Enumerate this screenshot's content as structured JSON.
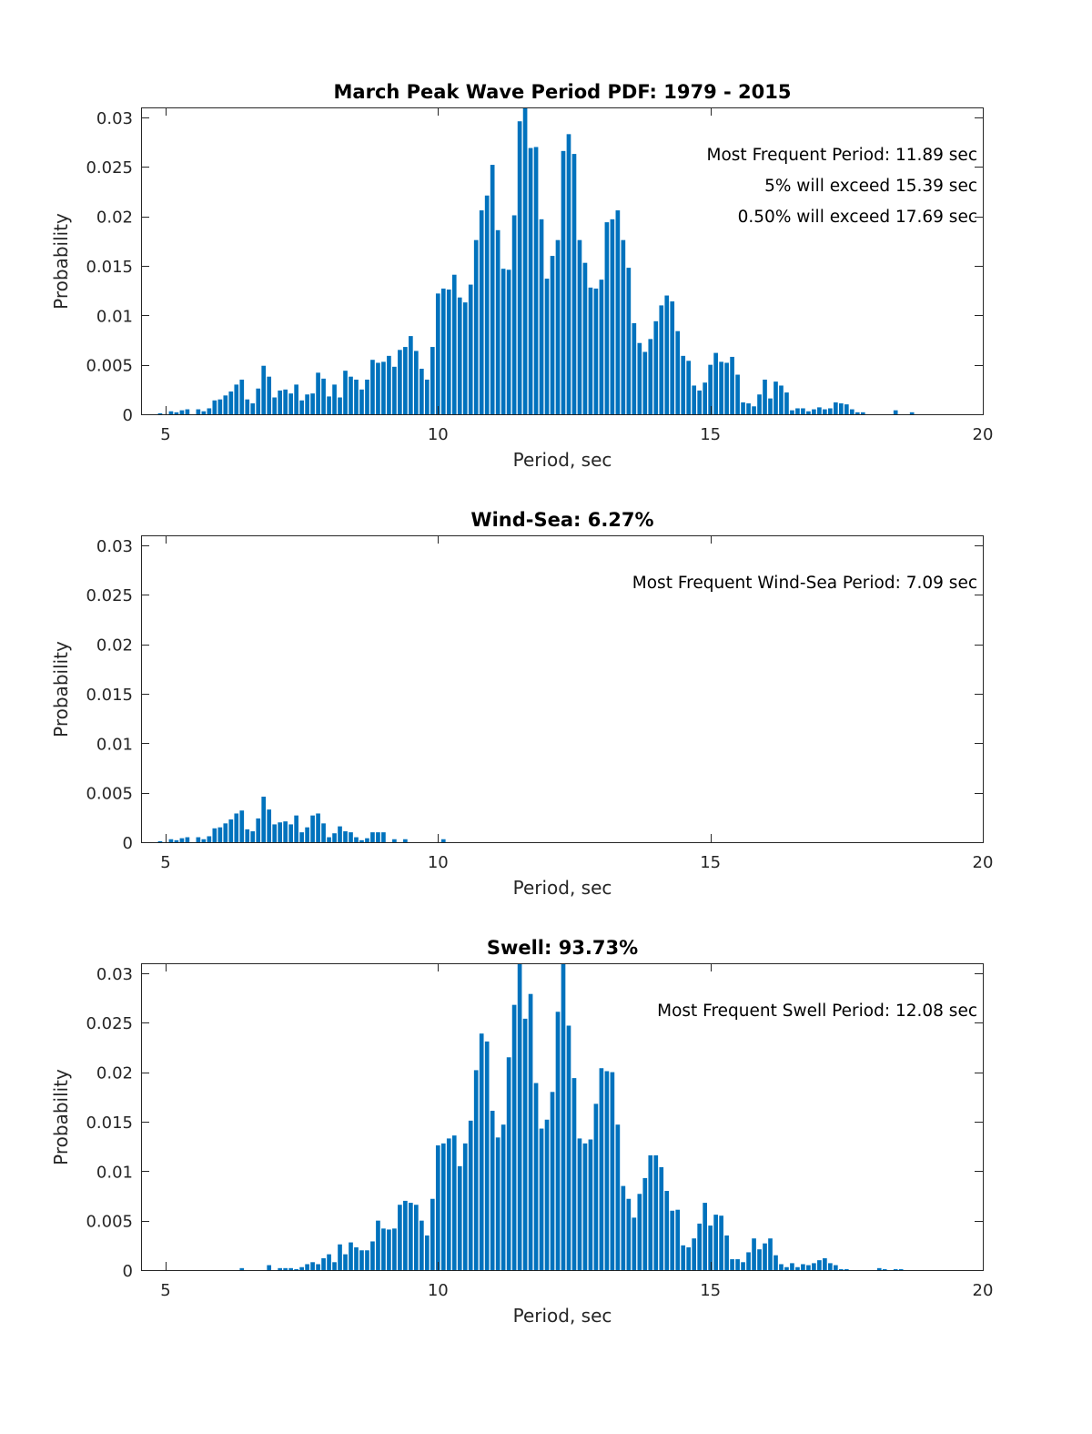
{
  "colors": {
    "bar": "#0072BD",
    "axis": "#262626",
    "background": "#ffffff"
  },
  "chart_data": [
    {
      "type": "bar",
      "title": "March Peak Wave Period PDF: 1979 - 2015",
      "xlabel": "Period, sec",
      "ylabel": "Probability",
      "xlim": [
        4.55,
        20
      ],
      "ylim": [
        0,
        0.031
      ],
      "xticks": [
        5,
        10,
        15,
        20
      ],
      "yticks": [
        0,
        0.005,
        0.01,
        0.015,
        0.02,
        0.025,
        0.03
      ],
      "annotations": [
        "Most Frequent Period: 11.89 sec",
        "5% will exceed 15.39 sec",
        "0.50% will exceed 17.69 sec"
      ],
      "bin_start": 4.9,
      "bin_width": 0.1,
      "values": [
        0.0001,
        0,
        0.0003,
        0.0002,
        0.0004,
        0.0005,
        0,
        0.0005,
        0.0003,
        0.0006,
        0.0014,
        0.0015,
        0.0019,
        0.0023,
        0.003,
        0.0035,
        0.0015,
        0.0011,
        0.0026,
        0.0049,
        0.0038,
        0.0017,
        0.0024,
        0.0025,
        0.0021,
        0.003,
        0.0014,
        0.002,
        0.0021,
        0.0042,
        0.0036,
        0.0018,
        0.003,
        0.0017,
        0.0044,
        0.0038,
        0.0035,
        0.0025,
        0.0035,
        0.0055,
        0.0052,
        0.0053,
        0.0059,
        0.0048,
        0.0065,
        0.0068,
        0.0079,
        0.0064,
        0.0046,
        0.0035,
        0.0068,
        0.0122,
        0.0127,
        0.0126,
        0.0141,
        0.0118,
        0.0113,
        0.0131,
        0.0176,
        0.0206,
        0.0221,
        0.0252,
        0.0186,
        0.0147,
        0.0146,
        0.0201,
        0.0296,
        0.0318,
        0.0269,
        0.027,
        0.0197,
        0.0137,
        0.016,
        0.0176,
        0.0266,
        0.0283,
        0.0263,
        0.0176,
        0.0153,
        0.0128,
        0.0127,
        0.0136,
        0.0194,
        0.0197,
        0.0206,
        0.0176,
        0.0148,
        0.0092,
        0.0072,
        0.0063,
        0.0076,
        0.0094,
        0.011,
        0.012,
        0.0114,
        0.0084,
        0.0059,
        0.0054,
        0.0029,
        0.0024,
        0.0032,
        0.005,
        0.0062,
        0.0053,
        0.0052,
        0.0058,
        0.004,
        0.0012,
        0.0011,
        0.0008,
        0.002,
        0.0035,
        0.0016,
        0.0033,
        0.0029,
        0.0022,
        0.0004,
        0.0006,
        0.0006,
        0.0003,
        0.0005,
        0.0007,
        0.0005,
        0.0006,
        0.0012,
        0.0011,
        0.001,
        0.0005,
        0.0002,
        0.0002,
        0,
        0,
        0,
        0,
        0,
        0.0004,
        0,
        0,
        0.0002
      ]
    },
    {
      "type": "bar",
      "title": "Wind-Sea: 6.27%",
      "xlabel": "Period, sec",
      "ylabel": "Probability",
      "xlim": [
        4.55,
        20
      ],
      "ylim": [
        0,
        0.031
      ],
      "xticks": [
        5,
        10,
        15,
        20
      ],
      "yticks": [
        0,
        0.005,
        0.01,
        0.015,
        0.02,
        0.025,
        0.03
      ],
      "annotations": [
        "Most Frequent Wind-Sea Period: 7.09 sec"
      ],
      "bin_start": 4.9,
      "bin_width": 0.1,
      "values": [
        0.0001,
        0,
        0.0003,
        0.0002,
        0.0004,
        0.0005,
        0,
        0.0005,
        0.0003,
        0.0006,
        0.0014,
        0.0015,
        0.0019,
        0.0023,
        0.0029,
        0.0032,
        0.0013,
        0.0011,
        0.0024,
        0.0046,
        0.0033,
        0.0018,
        0.002,
        0.0021,
        0.0018,
        0.0027,
        0.001,
        0.0015,
        0.0027,
        0.0029,
        0.0019,
        0.0005,
        0.0009,
        0.0016,
        0.0011,
        0.001,
        0.0005,
        0.0002,
        0.0004,
        0.001,
        0.001,
        0.001,
        0,
        0.0003,
        0,
        0.0003,
        0,
        0,
        0,
        0,
        0,
        0,
        0.0003
      ]
    },
    {
      "type": "bar",
      "title": "Swell: 93.73%",
      "xlabel": "Period, sec",
      "ylabel": "Probability",
      "xlim": [
        4.55,
        20
      ],
      "ylim": [
        0,
        0.031
      ],
      "xticks": [
        5,
        10,
        15,
        20
      ],
      "yticks": [
        0,
        0.005,
        0.01,
        0.015,
        0.02,
        0.025,
        0.03
      ],
      "annotations": [
        "Most Frequent Swell Period: 12.08 sec"
      ],
      "bin_start": 4.9,
      "bin_width": 0.1,
      "values": [
        0,
        0,
        0,
        0,
        0,
        0,
        0,
        0,
        0,
        0,
        0,
        0,
        0,
        0,
        0,
        0.0002,
        0,
        0,
        0,
        0,
        0.0005,
        0,
        0.0002,
        0.0002,
        0.0002,
        0.0001,
        0.0003,
        0.0006,
        0.0008,
        0.0006,
        0.0012,
        0.0016,
        0.0008,
        0.0026,
        0.0016,
        0.0028,
        0.0023,
        0.002,
        0.002,
        0.0029,
        0.005,
        0.0042,
        0.0041,
        0.0042,
        0.0066,
        0.007,
        0.0068,
        0.0066,
        0.005,
        0.0035,
        0.0072,
        0.0126,
        0.0128,
        0.0133,
        0.0136,
        0.0105,
        0.0128,
        0.0151,
        0.0202,
        0.0239,
        0.0231,
        0.0161,
        0.0134,
        0.0147,
        0.0215,
        0.0268,
        0.031,
        0.0254,
        0.0279,
        0.0189,
        0.0143,
        0.0152,
        0.018,
        0.0261,
        0.031,
        0.0247,
        0.0194,
        0.0133,
        0.0128,
        0.0132,
        0.0168,
        0.0204,
        0.0201,
        0.02,
        0.0147,
        0.0085,
        0.0072,
        0.0053,
        0.0077,
        0.0093,
        0.0116,
        0.0116,
        0.0104,
        0.008,
        0.006,
        0.0061,
        0.0025,
        0.0023,
        0.0032,
        0.0047,
        0.0068,
        0.0045,
        0.0056,
        0.0055,
        0.0035,
        0.0011,
        0.0011,
        0.0008,
        0.0018,
        0.0032,
        0.0021,
        0.0027,
        0.0032,
        0.0015,
        0.0006,
        0.0003,
        0.0007,
        0.0003,
        0.0006,
        0.0005,
        0.0007,
        0.001,
        0.0012,
        0.0007,
        0.0005,
        0.0001,
        0.0001,
        0,
        0,
        0,
        0,
        0,
        0.0002,
        0.0001,
        0,
        0.0001,
        0.0001
      ]
    }
  ]
}
